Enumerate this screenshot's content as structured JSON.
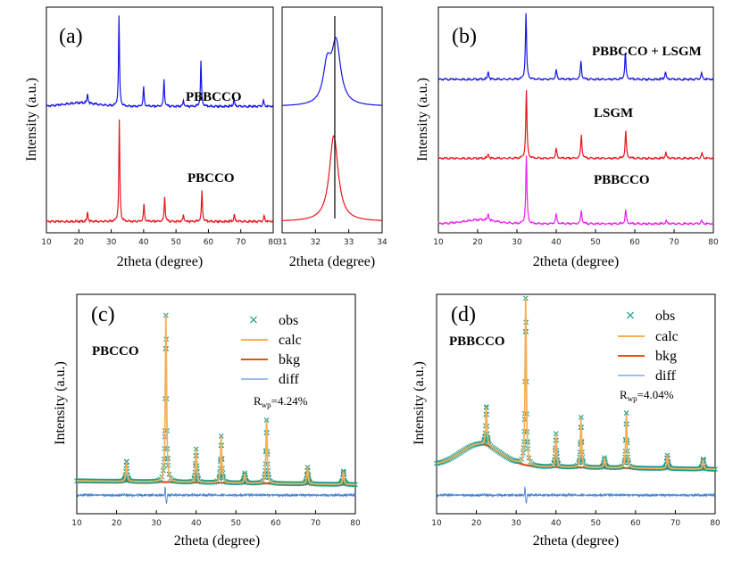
{
  "common": {
    "xlabel": "2theta (degree)",
    "ylabel": "Intensity (a.u.)"
  },
  "panel_a": {
    "label": "(a)",
    "legend_top": "PBBCCO",
    "legend_bottom": "PBCCO"
  },
  "panel_b": {
    "label": "(b)",
    "legend_top": "PBBCCO + LSGM",
    "legend_mid": "LSGM",
    "legend_bottom": "PBBCCO"
  },
  "panel_c": {
    "label": "(c)",
    "sample": "PBCCO",
    "legend": [
      "obs",
      "calc",
      "bkg",
      "diff"
    ],
    "rwp_prefix": "R",
    "rwp_sub": "wp",
    "rwp_value": "=4.24%"
  },
  "panel_d": {
    "label": "(d)",
    "sample": "PBBCCO",
    "legend": [
      "obs",
      "calc",
      "bkg",
      "diff"
    ],
    "rwp_prefix": "R",
    "rwp_sub": "wp",
    "rwp_value": "=4.04%"
  },
  "colors": {
    "blue": "#1515e8",
    "red": "#e8151b",
    "magenta": "#ee1ef0",
    "obs": "#1a9b8a",
    "calc": "#f5b05a",
    "bkg": "#e0521c",
    "diff": "#3a7fd5"
  },
  "chart_data": [
    {
      "id": "a",
      "type": "line",
      "xlabel": "2theta (degree)",
      "ylabel": "Intensity (a.u.)",
      "xlim": [
        10,
        80
      ],
      "xticks": [
        10,
        20,
        30,
        40,
        50,
        60,
        70,
        80
      ],
      "series": [
        {
          "name": "PBBCCO",
          "color": "blue",
          "offset": 0.56,
          "peak_scale": 0.4,
          "hump": {
            "x": 20.5,
            "h": 0.04,
            "w": 5
          },
          "peaks": [
            [
              22.7,
              0.11
            ],
            [
              32.4,
              1.0
            ],
            [
              40.0,
              0.22
            ],
            [
              46.3,
              0.3
            ],
            [
              52.3,
              0.07
            ],
            [
              57.7,
              0.5
            ],
            [
              67.9,
              0.09
            ],
            [
              77.0,
              0.07
            ]
          ]
        },
        {
          "name": "PBCCO",
          "color": "red",
          "offset": 0.05,
          "peak_scale": 0.45,
          "peaks": [
            [
              22.7,
              0.1
            ],
            [
              32.5,
              1.0
            ],
            [
              40.1,
              0.17
            ],
            [
              46.5,
              0.25
            ],
            [
              52.3,
              0.07
            ],
            [
              58.0,
              0.3
            ],
            [
              68.0,
              0.07
            ],
            [
              77.2,
              0.06
            ]
          ]
        }
      ]
    },
    {
      "id": "a-zoom",
      "type": "line",
      "xlabel": "2theta (degree)",
      "xlim": [
        31,
        34
      ],
      "xticks": [
        31,
        32,
        33,
        34
      ],
      "reference_line_x": 32.58,
      "series": [
        {
          "name": "PBBCCO",
          "color": "blue",
          "peak_x": 32.62
        },
        {
          "name": "PBCCO",
          "color": "red",
          "peak_x": 32.55
        }
      ]
    },
    {
      "id": "b",
      "type": "line",
      "xlabel": "2theta (degree)",
      "ylabel": "Intensity (a.u.)",
      "xlim": [
        10,
        80
      ],
      "xticks": [
        10,
        20,
        30,
        40,
        50,
        60,
        70,
        80
      ],
      "series": [
        {
          "name": "PBBCCO + LSGM",
          "color": "blue",
          "offset": 0.68,
          "peak_scale": 0.29,
          "peaks": [
            [
              22.7,
              0.12
            ],
            [
              32.3,
              1.0
            ],
            [
              40.0,
              0.15
            ],
            [
              46.3,
              0.28
            ],
            [
              57.6,
              0.4
            ],
            [
              67.8,
              0.12
            ],
            [
              77.0,
              0.1
            ]
          ]
        },
        {
          "name": "LSGM",
          "color": "red",
          "offset": 0.33,
          "peak_scale": 0.3,
          "peaks": [
            [
              22.7,
              0.07
            ],
            [
              32.4,
              1.0
            ],
            [
              40.0,
              0.15
            ],
            [
              46.4,
              0.35
            ],
            [
              57.7,
              0.4
            ],
            [
              67.9,
              0.09
            ],
            [
              77.1,
              0.08
            ]
          ]
        },
        {
          "name": "PBBCCO",
          "color": "magenta",
          "offset": 0.04,
          "peak_scale": 0.3,
          "hump": {
            "x": 20.5,
            "h": 0.06,
            "w": 4
          },
          "peaks": [
            [
              22.7,
              0.1
            ],
            [
              32.4,
              1.0
            ],
            [
              40.0,
              0.15
            ],
            [
              46.4,
              0.2
            ],
            [
              57.7,
              0.2
            ],
            [
              68.0,
              0.05
            ],
            [
              77.0,
              0.05
            ]
          ]
        }
      ]
    },
    {
      "id": "c",
      "type": "line",
      "xlabel": "2theta (degree)",
      "ylabel": "Intensity (a.u.)",
      "xlim": [
        10,
        80
      ],
      "xticks": [
        10,
        20,
        30,
        40,
        50,
        60,
        70,
        80
      ],
      "series": [
        {
          "name": "obs",
          "peaks": [
            [
              22.5,
              0.12
            ],
            [
              32.4,
              1.0
            ],
            [
              40.0,
              0.2
            ],
            [
              46.3,
              0.28
            ],
            [
              52.2,
              0.06
            ],
            [
              57.7,
              0.38
            ],
            [
              68.0,
              0.1
            ],
            [
              77.0,
              0.08
            ]
          ]
        },
        {
          "name": "calc"
        },
        {
          "name": "bkg"
        },
        {
          "name": "diff"
        }
      ]
    },
    {
      "id": "d",
      "type": "line",
      "xlabel": "2theta (degree)",
      "ylabel": "Intensity (a.u.)",
      "xlim": [
        10,
        80
      ],
      "xticks": [
        10,
        20,
        30,
        40,
        50,
        60,
        70,
        80
      ],
      "series": [
        {
          "name": "obs",
          "hump": {
            "x": 21,
            "h": 0.1,
            "w": 5
          },
          "peaks": [
            [
              22.5,
              0.23
            ],
            [
              32.4,
              1.0
            ],
            [
              40.0,
              0.2
            ],
            [
              46.3,
              0.3
            ],
            [
              52.2,
              0.06
            ],
            [
              57.7,
              0.33
            ],
            [
              68.0,
              0.08
            ],
            [
              77.0,
              0.06
            ]
          ]
        },
        {
          "name": "calc"
        },
        {
          "name": "bkg"
        },
        {
          "name": "diff"
        }
      ]
    }
  ]
}
